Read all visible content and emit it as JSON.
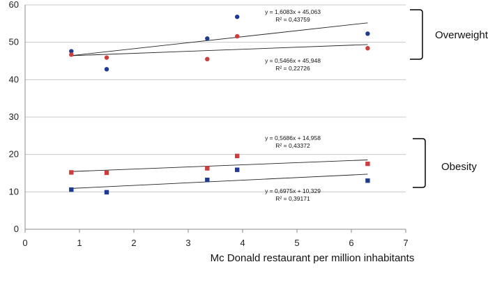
{
  "chart_data": {
    "type": "scatter",
    "title": "",
    "xlabel": "Mc Donald restaurant per million inhabitants",
    "ylabel": "",
    "xlim": [
      0,
      7
    ],
    "ylim": [
      0,
      60
    ],
    "x_ticks": [
      0,
      1,
      2,
      3,
      4,
      5,
      6,
      7
    ],
    "y_ticks": [
      0,
      10,
      20,
      30,
      40,
      50,
      60
    ],
    "grid": "horizontal",
    "series": [
      {
        "name": "Overweight (blue)",
        "marker": "circle",
        "color": "#1f3a93",
        "x": [
          0.85,
          1.5,
          3.35,
          3.9,
          6.3
        ],
        "y": [
          47.6,
          42.8,
          51.0,
          56.8,
          52.3
        ],
        "trendline": {
          "slope": 1.6083,
          "intercept": 45.063
        },
        "equation": "y = 1,6083x + 45,063",
        "r2": "R² = 0,43759"
      },
      {
        "name": "Overweight (red)",
        "marker": "circle",
        "color": "#d03b3b",
        "x": [
          0.85,
          1.5,
          3.35,
          3.9,
          6.3
        ],
        "y": [
          46.7,
          45.9,
          45.5,
          51.6,
          48.4
        ],
        "trendline": {
          "slope": 0.5466,
          "intercept": 45.948
        },
        "equation": "y = 0,5466x + 45,948",
        "r2": "R² = 0,22726"
      },
      {
        "name": "Obesity (red)",
        "marker": "square",
        "color": "#d03b3b",
        "x": [
          0.85,
          1.5,
          3.35,
          3.9,
          6.3
        ],
        "y": [
          15.2,
          15.1,
          16.3,
          19.6,
          17.5
        ],
        "trendline": {
          "slope": 0.5686,
          "intercept": 14.958
        },
        "equation": "y = 0,5686x + 14,958",
        "r2": "R² = 0,43372"
      },
      {
        "name": "Obesity (blue)",
        "marker": "square",
        "color": "#1f3a93",
        "x": [
          0.85,
          1.5,
          3.35,
          3.9,
          6.3
        ],
        "y": [
          10.6,
          9.9,
          13.2,
          15.9,
          13.0
        ],
        "trendline": {
          "slope": 0.6975,
          "intercept": 10.329
        },
        "equation": "y = 0,6975x + 10,329",
        "r2": "R² = 0,39171"
      }
    ],
    "group_labels": {
      "overweight": "Overweight",
      "obesity": "Obesity"
    }
  }
}
